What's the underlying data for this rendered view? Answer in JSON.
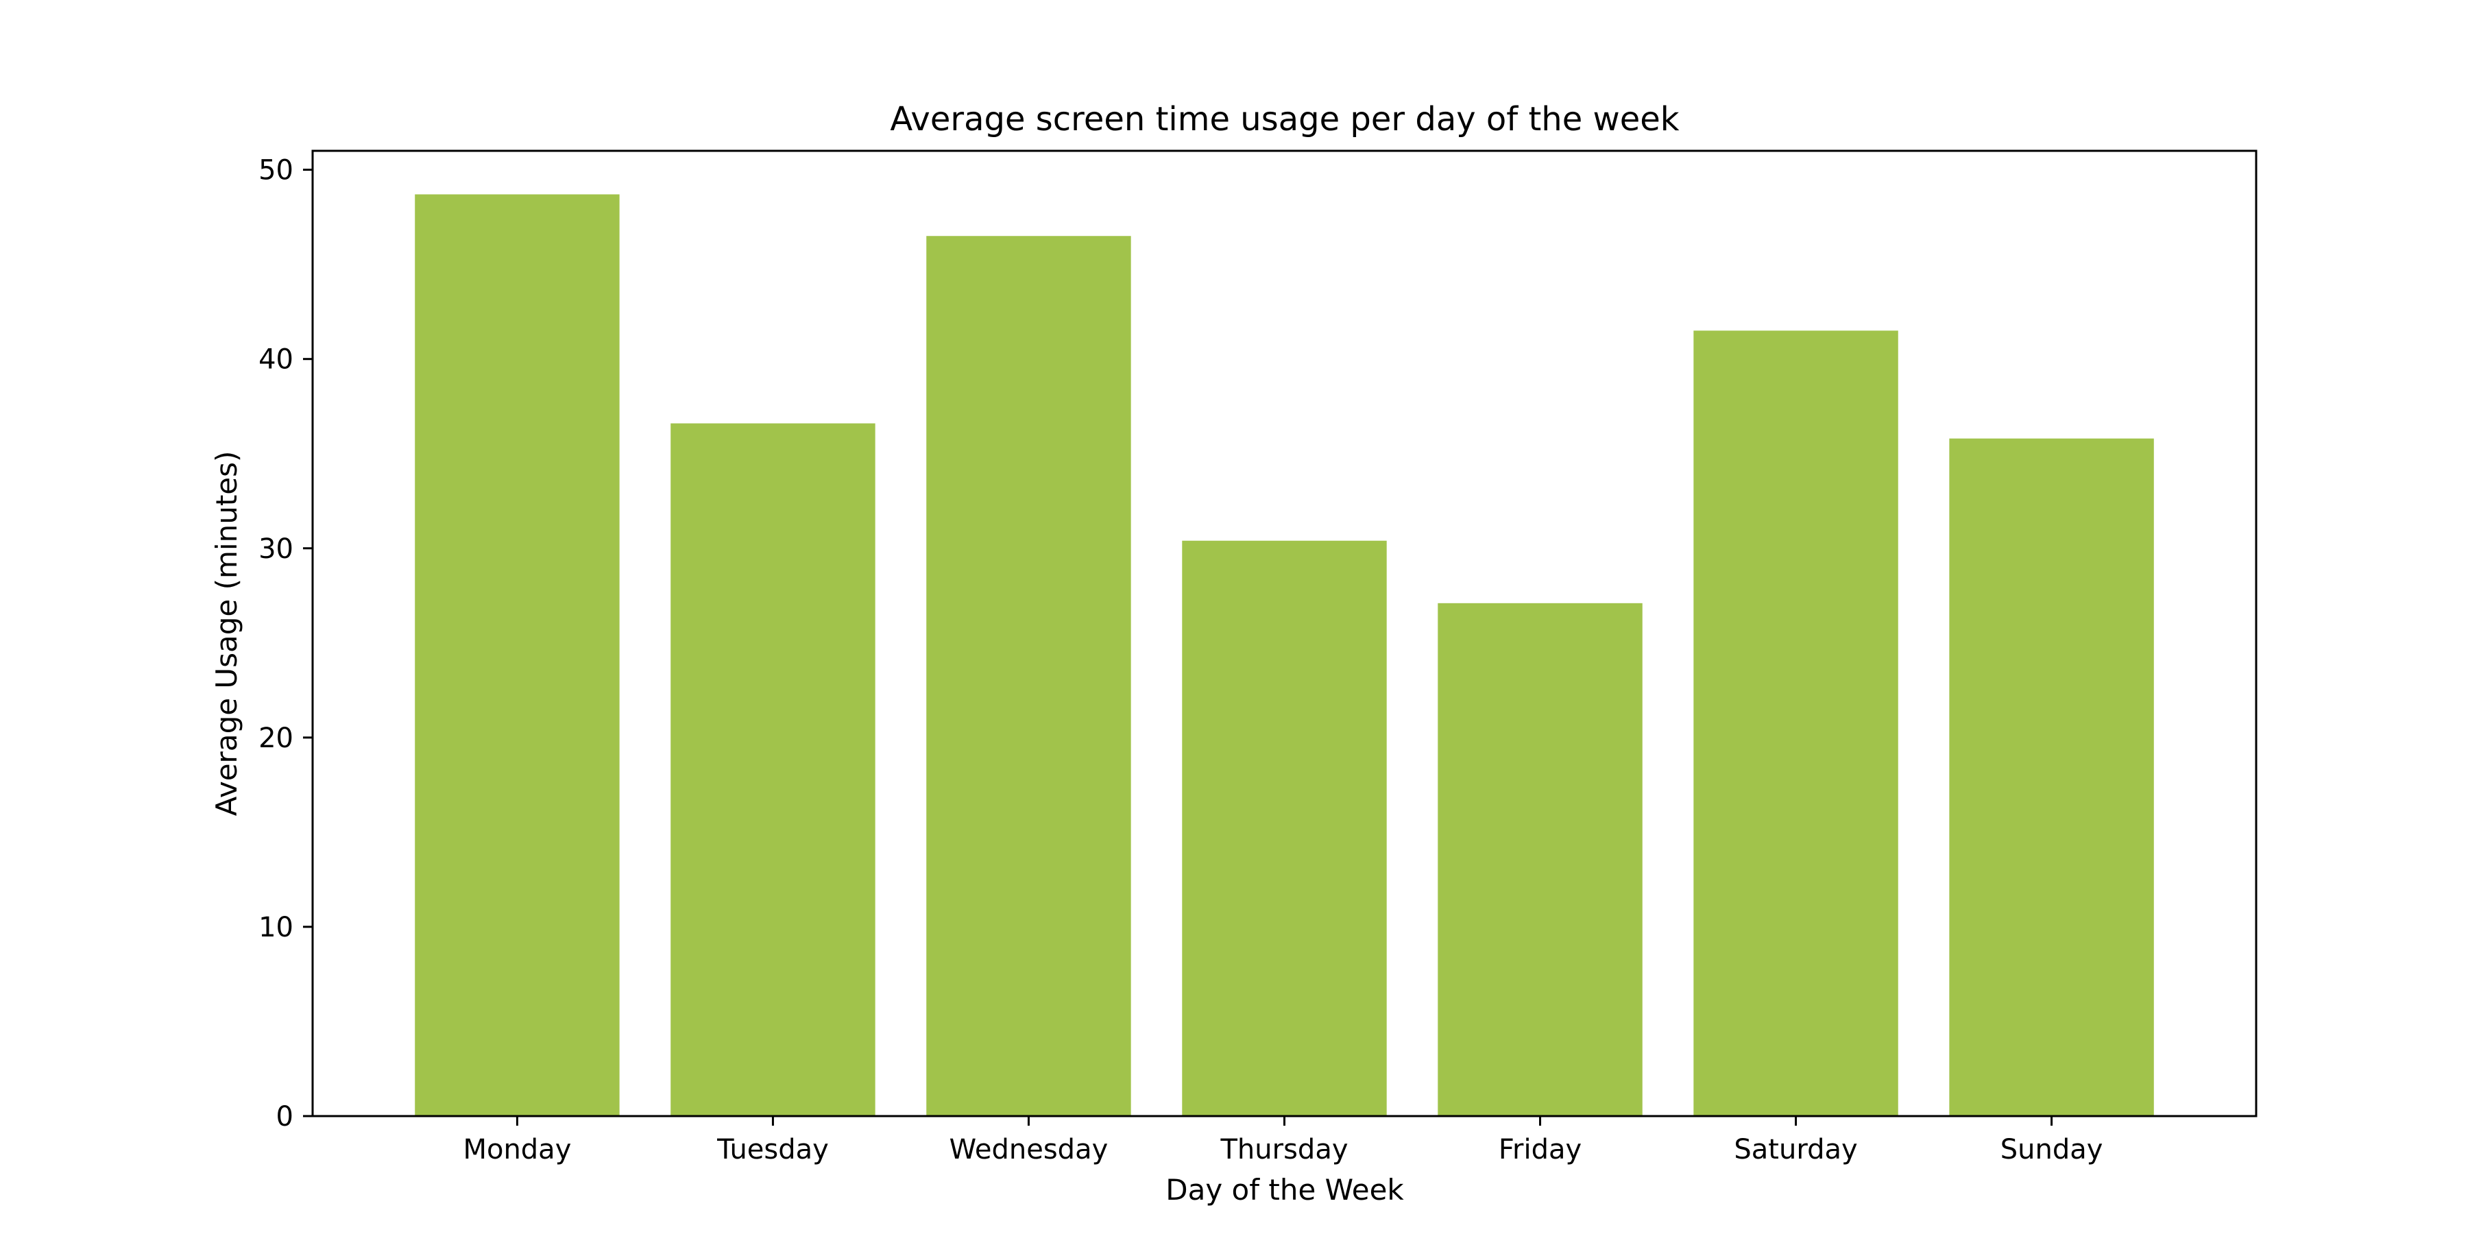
{
  "chart_data": {
    "type": "bar",
    "title": "Average screen time usage per day of the week",
    "xlabel": "Day of the Week",
    "ylabel": "Average Usage (minutes)",
    "categories": [
      "Monday",
      "Tuesday",
      "Wednesday",
      "Thursday",
      "Friday",
      "Saturday",
      "Sunday"
    ],
    "values": [
      48.7,
      36.6,
      46.5,
      30.4,
      27.1,
      41.5,
      35.8
    ],
    "ylim": [
      0,
      51
    ],
    "yticks": [
      0,
      10,
      20,
      30,
      40,
      50
    ],
    "bar_color": "#a1c34b",
    "grid": false,
    "legend": "none"
  }
}
